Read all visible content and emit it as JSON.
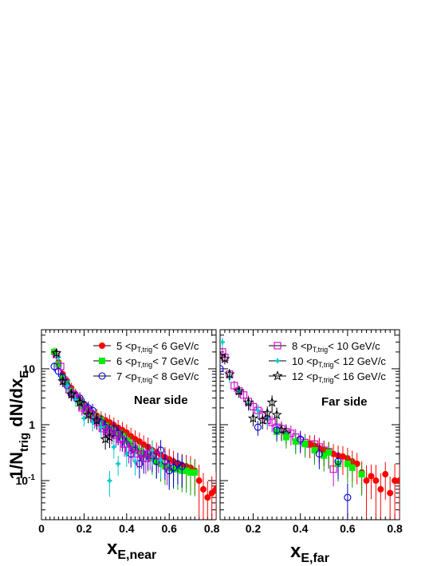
{
  "chart_data": [
    {
      "type": "scatter",
      "panel": "Near side",
      "label": "Near side",
      "xlabel": "x_E,near",
      "ylabel": "1/N_trig dN/dx_E",
      "xlim": [
        0,
        0.82
      ],
      "ylim": [
        0.02,
        50
      ],
      "yscale": "log",
      "x_ticks": [
        "0",
        "0.2",
        "0.4",
        "0.6",
        "0.8"
      ],
      "y_ticks": [
        "10",
        "1",
        "10^-1"
      ],
      "legend_position": "top-right",
      "series": [
        {
          "name": "5 <p_T,trig< 6 GeV/c",
          "marker": "filled-circle",
          "color": "#ff0000",
          "x": [
            0.06,
            0.08,
            0.1,
            0.12,
            0.14,
            0.16,
            0.18,
            0.2,
            0.22,
            0.24,
            0.26,
            0.28,
            0.3,
            0.32,
            0.34,
            0.36,
            0.38,
            0.4,
            0.42,
            0.44,
            0.46,
            0.48,
            0.5,
            0.52,
            0.54,
            0.56,
            0.58,
            0.6,
            0.62,
            0.64,
            0.66,
            0.68,
            0.7,
            0.72,
            0.74,
            0.76,
            0.78,
            0.8,
            0.82
          ],
          "y": [
            20,
            13,
            8,
            6,
            4.5,
            3.5,
            2.8,
            2.3,
            1.9,
            1.6,
            1.45,
            1.3,
            1.2,
            1.1,
            0.98,
            0.88,
            0.8,
            0.72,
            0.62,
            0.55,
            0.5,
            0.44,
            0.4,
            0.35,
            0.32,
            0.29,
            0.26,
            0.24,
            0.22,
            0.2,
            0.19,
            0.18,
            0.17,
            0.15,
            0.1,
            0.07,
            0.05,
            0.06,
            0.07
          ]
        },
        {
          "name": "6 <p_T,trig< 7 GeV/c",
          "marker": "filled-square",
          "color": "#00ee00",
          "x": [
            0.06,
            0.08,
            0.1,
            0.12,
            0.14,
            0.16,
            0.18,
            0.2,
            0.22,
            0.24,
            0.26,
            0.28,
            0.3,
            0.32,
            0.34,
            0.36,
            0.38,
            0.4,
            0.42,
            0.44,
            0.46,
            0.48,
            0.5,
            0.52,
            0.54,
            0.56,
            0.58,
            0.6,
            0.62,
            0.64,
            0.66,
            0.68,
            0.7,
            0.72
          ],
          "y": [
            20,
            12,
            7,
            5.5,
            4,
            3.2,
            2.6,
            2.1,
            1.7,
            1.45,
            1.3,
            1.2,
            0.95,
            0.85,
            0.75,
            0.7,
            0.62,
            0.52,
            0.45,
            0.38,
            0.34,
            0.3,
            0.28,
            0.25,
            0.22,
            0.2,
            0.18,
            0.17,
            0.16,
            0.16,
            0.15,
            0.15,
            0.14,
            0.14
          ]
        },
        {
          "name": "7 <p_T,trig< 8 GeV/c",
          "marker": "open-circle",
          "color": "#0000cc",
          "x": [
            0.06,
            0.08,
            0.1,
            0.12,
            0.14,
            0.16,
            0.18,
            0.2,
            0.22,
            0.24,
            0.26,
            0.28,
            0.3,
            0.32,
            0.34,
            0.36,
            0.38,
            0.4,
            0.42,
            0.44,
            0.46,
            0.48,
            0.5,
            0.52,
            0.54,
            0.56,
            0.58,
            0.6,
            0.62,
            0.64,
            0.66
          ],
          "y": [
            11,
            9,
            7,
            5,
            3.5,
            3.2,
            3,
            2.3,
            2,
            1.8,
            1.2,
            1.1,
            0.9,
            0.75,
            0.85,
            0.7,
            0.55,
            0.45,
            0.3,
            0.35,
            0.2,
            0.25,
            0.3,
            0.28,
            0.22,
            0.35,
            0.22,
            0.15,
            0.17,
            0.2,
            0.18
          ]
        }
      ],
      "extra_series": [
        {
          "name": "8 <p_T,trig< 10 GeV/c",
          "marker": "open-square",
          "color": "#cc00cc",
          "x": [
            0.07,
            0.09,
            0.11,
            0.13,
            0.15,
            0.17,
            0.19,
            0.21,
            0.23,
            0.25,
            0.27,
            0.29,
            0.31,
            0.33,
            0.35,
            0.37,
            0.39,
            0.41,
            0.43,
            0.45,
            0.47,
            0.49,
            0.51,
            0.55,
            0.59
          ],
          "y": [
            18,
            11,
            6,
            4.2,
            3.5,
            3,
            2,
            1.8,
            1.6,
            1.25,
            1.1,
            0.85,
            0.75,
            0.7,
            0.65,
            0.55,
            0.45,
            0.35,
            0.4,
            0.3,
            0.3,
            0.25,
            0.3,
            0.28,
            0.18
          ]
        },
        {
          "name": "10 <p_T,trig< 12 GeV/c",
          "marker": "cross",
          "color": "#00cccc",
          "x": [
            0.08,
            0.12,
            0.16,
            0.2,
            0.24,
            0.28,
            0.32,
            0.34,
            0.36,
            0.4,
            0.44,
            0.52,
            0.56
          ],
          "y": [
            16,
            5,
            2.8,
            1.3,
            1.1,
            0.9,
            0.1,
            0.4,
            0.2,
            0.3,
            0.22,
            0.35,
            0.23
          ]
        },
        {
          "name": "12 <p_T,trig< 16 GeV/c",
          "marker": "star",
          "color": "#000000",
          "x": [
            0.07,
            0.1,
            0.14,
            0.18,
            0.22,
            0.26,
            0.3,
            0.32
          ],
          "y": [
            19,
            6,
            3.5,
            2.5,
            1.5,
            1.2,
            0.55,
            0.6
          ]
        }
      ]
    },
    {
      "type": "scatter",
      "panel": "Far side",
      "label": "Far side",
      "xlabel": "x_E,far",
      "ylabel": "",
      "xlim": [
        0.06,
        0.82
      ],
      "ylim": [
        0.02,
        50
      ],
      "yscale": "log",
      "x_ticks": [
        "0.2",
        "0.4",
        "0.6",
        "0.8"
      ],
      "legend_position": "top-right",
      "series": [
        {
          "name": "8 <p_T,trig< 10 GeV/c",
          "marker": "open-square",
          "color": "#cc00cc",
          "x": [
            0.07,
            0.08,
            0.1,
            0.12,
            0.14,
            0.16,
            0.18,
            0.2,
            0.22,
            0.24,
            0.26,
            0.28,
            0.3,
            0.32,
            0.34,
            0.36,
            0.38,
            0.4,
            0.42,
            0.44,
            0.46,
            0.48,
            0.5,
            0.52,
            0.54
          ],
          "y": [
            20,
            16,
            8,
            5,
            4,
            3.4,
            2.6,
            2.1,
            1.8,
            1.5,
            1.2,
            1.1,
            0.9,
            0.85,
            0.75,
            0.7,
            0.6,
            0.52,
            0.48,
            0.45,
            0.45,
            0.4,
            0.35,
            0.33,
            0.16
          ]
        },
        {
          "name": "10 <p_T,trig< 12 GeV/c",
          "marker": "cross",
          "color": "#00cccc",
          "x": [
            0.07,
            0.1,
            0.14,
            0.18,
            0.22,
            0.26,
            0.3,
            0.34,
            0.38,
            0.42,
            0.46,
            0.5
          ],
          "y": [
            30,
            7,
            4,
            2.4,
            1.8,
            1.3,
            0.8,
            0.7,
            0.5,
            0.45,
            0.4,
            0.35
          ]
        },
        {
          "name": "12 <p_T,trig< 16 GeV/c",
          "marker": "star",
          "color": "#000000",
          "x": [
            0.06,
            0.08,
            0.1,
            0.14,
            0.18,
            0.2,
            0.24,
            0.26,
            0.28,
            0.3,
            0.32,
            0.34
          ],
          "y": [
            17,
            15,
            8,
            4,
            2.5,
            1.3,
            1.2,
            1.6,
            2.5,
            1.5,
            0.8,
            0.7
          ]
        }
      ],
      "extra_series": [
        {
          "name": "5 <p_T,trig< 6 GeV/c",
          "marker": "filled-circle",
          "color": "#ff0000",
          "x": [
            0.44,
            0.46,
            0.48,
            0.5,
            0.52,
            0.54,
            0.56,
            0.58,
            0.6,
            0.62,
            0.64,
            0.66,
            0.68,
            0.7,
            0.72,
            0.74,
            0.76,
            0.78,
            0.8,
            0.82
          ],
          "y": [
            0.45,
            0.42,
            0.38,
            0.35,
            0.33,
            0.3,
            0.28,
            0.27,
            0.25,
            0.22,
            0.2,
            0.14,
            0.1,
            0.12,
            0.1,
            0.07,
            0.13,
            0.06,
            0.1,
            0.1
          ]
        },
        {
          "name": "6 <p_T,trig< 7 GeV/c",
          "marker": "filled-square",
          "color": "#00ee00",
          "x": [
            0.3,
            0.34,
            0.38,
            0.42,
            0.46,
            0.5,
            0.52,
            0.56,
            0.6,
            0.62,
            0.66
          ],
          "y": [
            0.75,
            0.6,
            0.5,
            0.45,
            0.35,
            0.28,
            0.32,
            0.2,
            0.2,
            0.17,
            0.13
          ]
        },
        {
          "name": "7 <p_T,trig< 8 GeV/c",
          "marker": "open-circle",
          "color": "#0000cc",
          "x": [
            0.06,
            0.22,
            0.3,
            0.4,
            0.48,
            0.56,
            0.6
          ],
          "y": [
            10,
            0.9,
            0.8,
            0.55,
            0.3,
            0.22,
            0.05
          ]
        }
      ]
    }
  ],
  "labels": {
    "ylabel_main": "1/N",
    "ylabel_sub1": "trig",
    "ylabel_tail": "dN/dx",
    "ylabel_sub2": "E",
    "xlabel_left_main": "x",
    "xlabel_left_sub": "E,near",
    "xlabel_right_main": "x",
    "xlabel_right_sub": "E,far",
    "near_side": "Near side",
    "far_side": "Far side"
  }
}
